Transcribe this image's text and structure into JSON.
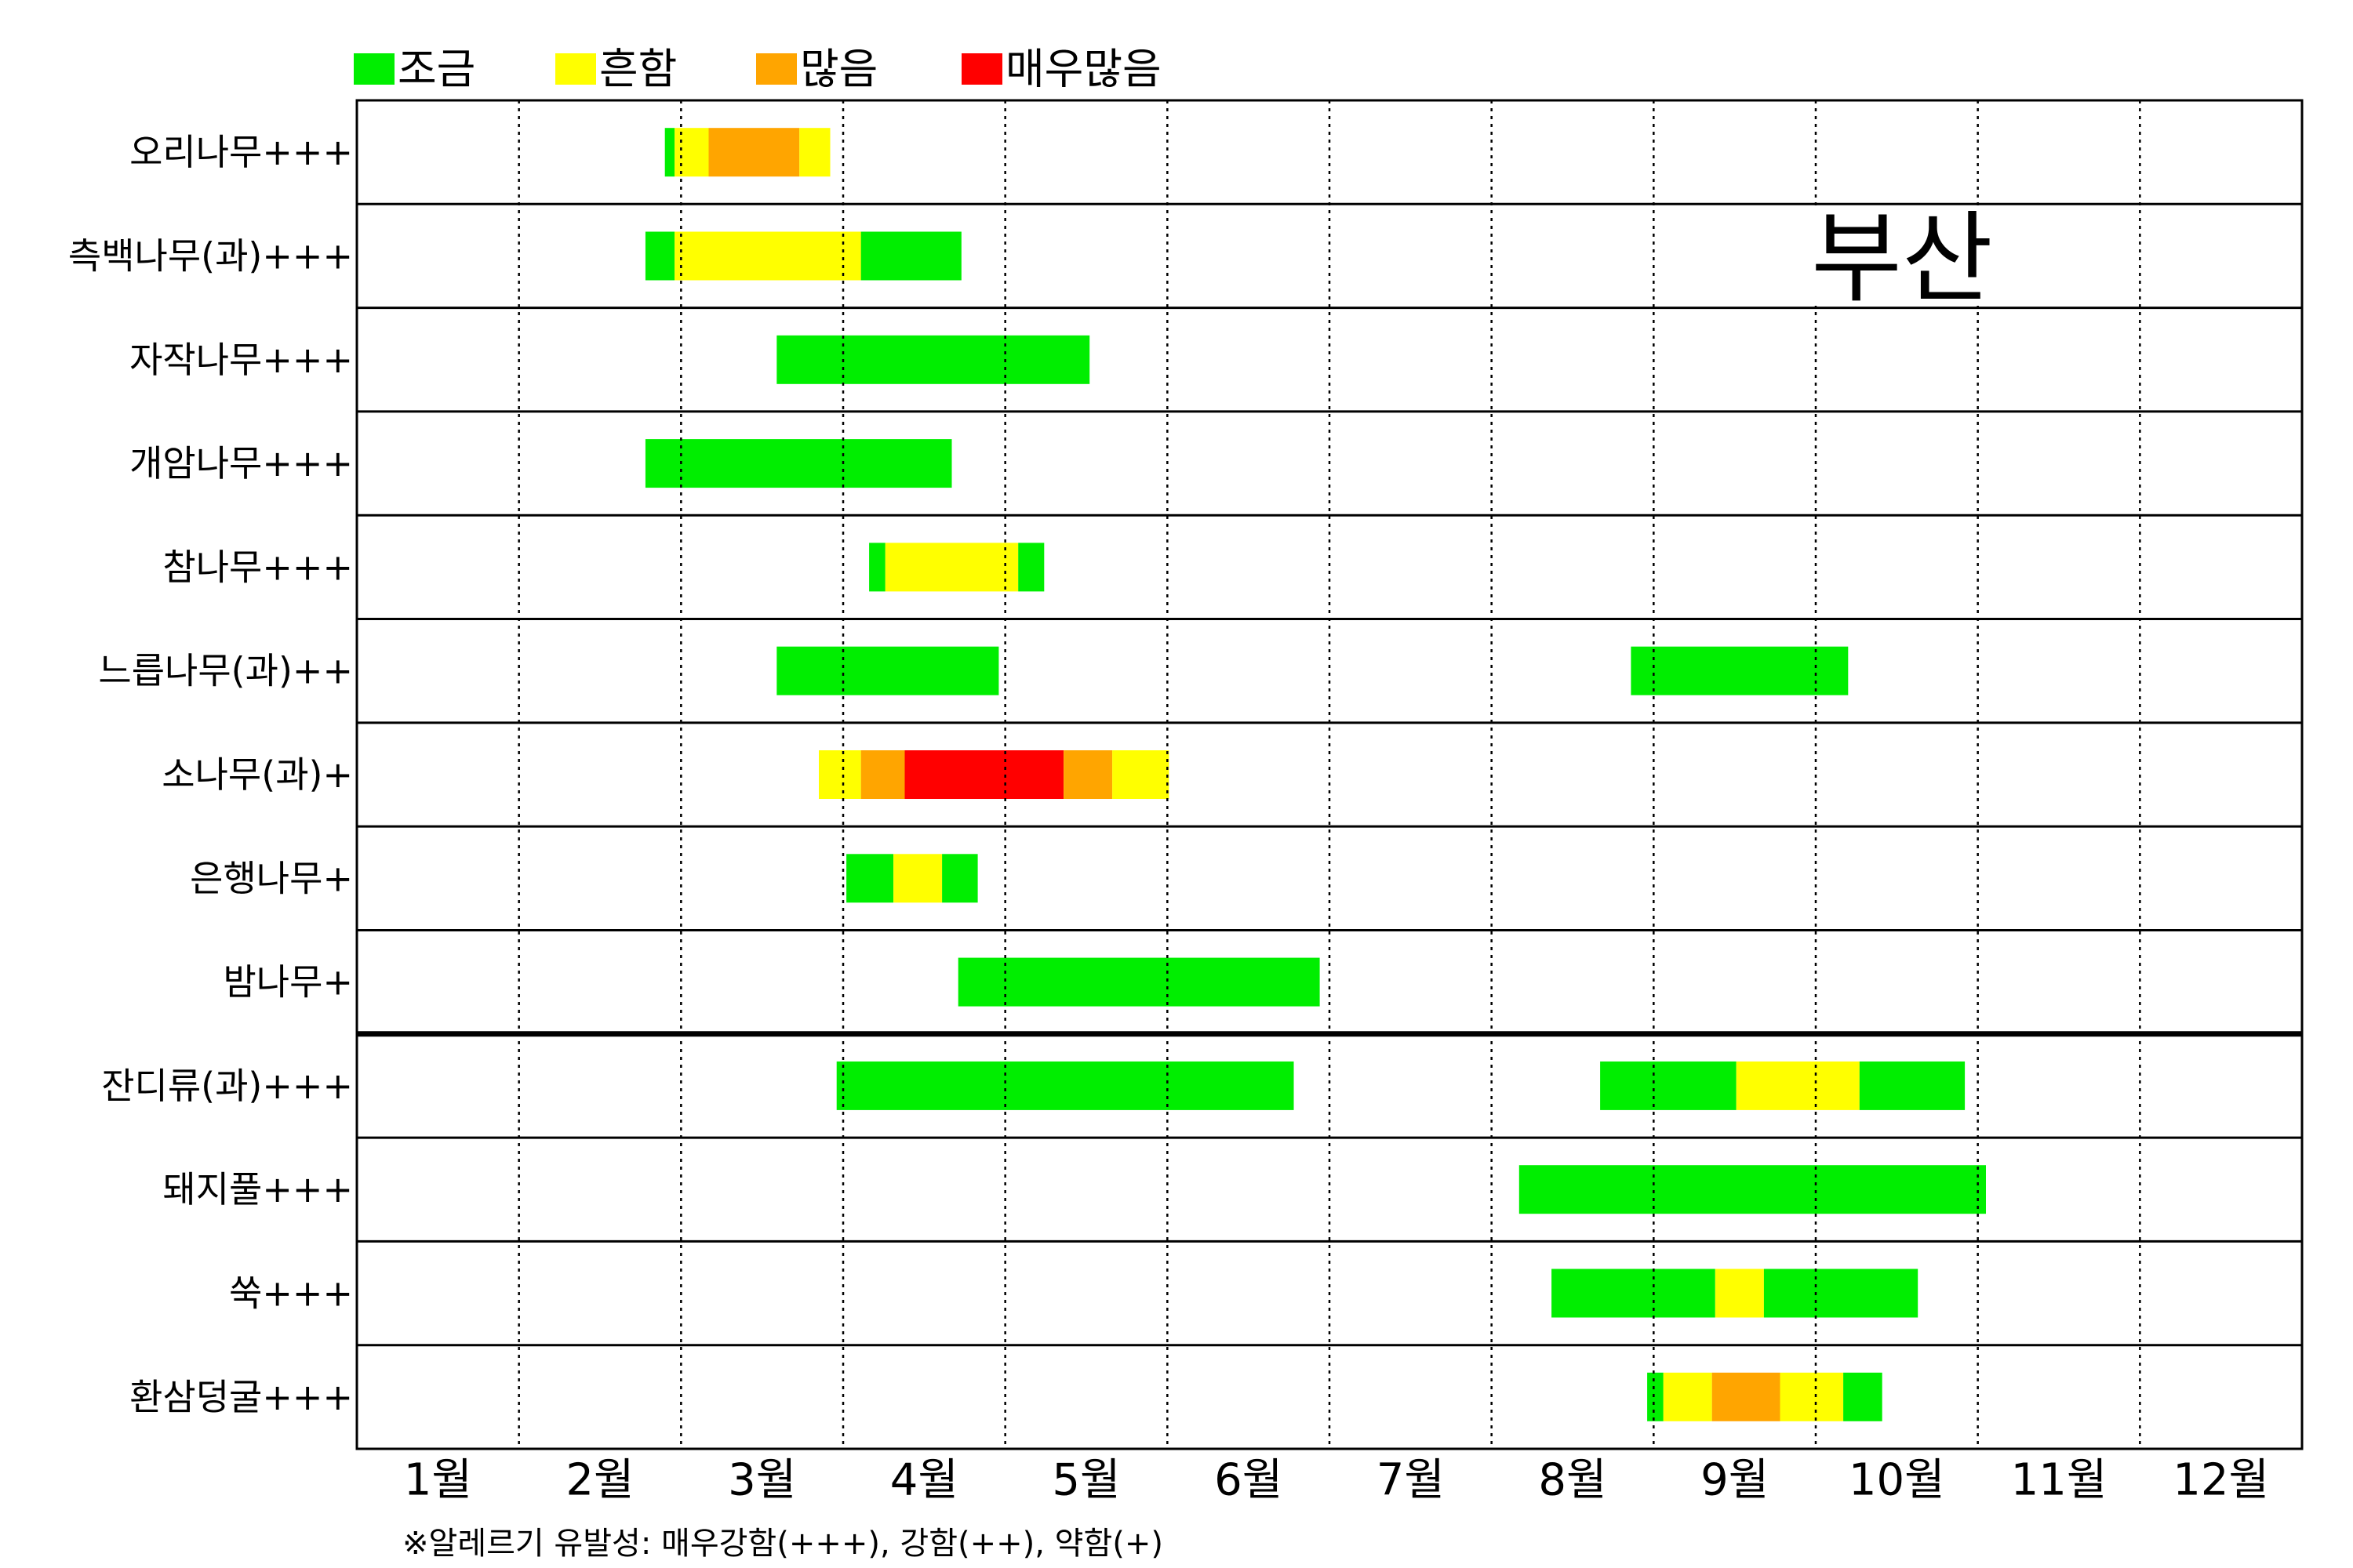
{
  "chart_data": {
    "type": "timeline",
    "title": "부산",
    "legend": {
      "placement": "top-left",
      "items": [
        {
          "label": "조금",
          "color": "#00ee00",
          "level": "low"
        },
        {
          "label": "흔함",
          "color": "#ffff00",
          "level": "common"
        },
        {
          "label": "많음",
          "color": "#ffa500",
          "level": "high"
        },
        {
          "label": "매우많음",
          "color": "#ff0000",
          "level": "very_high"
        }
      ]
    },
    "months": [
      "1월",
      "2월",
      "3월",
      "4월",
      "5월",
      "6월",
      "7월",
      "8월",
      "9월",
      "10월",
      "11월",
      "12월"
    ],
    "x_unit": "month (1.0 = start of January, 13.0 = end of December)",
    "xlim": [
      1,
      13
    ],
    "grid": "dotted vertical lines at month boundaries",
    "footnote": "※알레르기 유발성: 매우강함(+++), 강함(++), 약함(+)",
    "divider_after_row": 9,
    "rows": [
      {
        "label": "오리나무+++",
        "segments": [
          {
            "start": 2.9,
            "end": 2.96,
            "level": "low"
          },
          {
            "start": 2.96,
            "end": 3.17,
            "level": "common"
          },
          {
            "start": 3.17,
            "end": 3.73,
            "level": "high"
          },
          {
            "start": 3.73,
            "end": 3.92,
            "level": "common"
          }
        ]
      },
      {
        "label": "측백나무(과)+++",
        "segments": [
          {
            "start": 2.78,
            "end": 2.96,
            "level": "low"
          },
          {
            "start": 2.96,
            "end": 4.11,
            "level": "common"
          },
          {
            "start": 4.11,
            "end": 4.73,
            "level": "low"
          }
        ]
      },
      {
        "label": "자작나무+++",
        "segments": [
          {
            "start": 3.59,
            "end": 5.52,
            "level": "low"
          }
        ]
      },
      {
        "label": "개암나무+++",
        "segments": [
          {
            "start": 2.78,
            "end": 4.67,
            "level": "low"
          }
        ]
      },
      {
        "label": "참나무+++",
        "segments": [
          {
            "start": 4.16,
            "end": 4.26,
            "level": "low"
          },
          {
            "start": 4.26,
            "end": 5.08,
            "level": "common"
          },
          {
            "start": 5.08,
            "end": 5.24,
            "level": "low"
          }
        ]
      },
      {
        "label": "느릅나무(과)++",
        "segments": [
          {
            "start": 3.59,
            "end": 4.96,
            "level": "low"
          },
          {
            "start": 8.86,
            "end": 10.2,
            "level": "low"
          }
        ]
      },
      {
        "label": "소나무(과)+",
        "segments": [
          {
            "start": 3.85,
            "end": 4.11,
            "level": "common"
          },
          {
            "start": 4.11,
            "end": 4.38,
            "level": "high"
          },
          {
            "start": 4.38,
            "end": 5.36,
            "level": "very_high"
          },
          {
            "start": 5.36,
            "end": 5.66,
            "level": "high"
          },
          {
            "start": 5.66,
            "end": 6.01,
            "level": "common"
          }
        ]
      },
      {
        "label": "은행나무+",
        "segments": [
          {
            "start": 4.02,
            "end": 4.31,
            "level": "low"
          },
          {
            "start": 4.31,
            "end": 4.61,
            "level": "common"
          },
          {
            "start": 4.61,
            "end": 4.83,
            "level": "low"
          }
        ]
      },
      {
        "label": "밤나무+",
        "segments": [
          {
            "start": 4.71,
            "end": 6.94,
            "level": "low"
          }
        ]
      },
      {
        "label": "잔디류(과)+++",
        "segments": [
          {
            "start": 3.96,
            "end": 6.78,
            "level": "low"
          },
          {
            "start": 8.67,
            "end": 9.51,
            "level": "low"
          },
          {
            "start": 9.51,
            "end": 10.27,
            "level": "common"
          },
          {
            "start": 10.27,
            "end": 10.92,
            "level": "low"
          }
        ]
      },
      {
        "label": "돼지풀+++",
        "segments": [
          {
            "start": 8.17,
            "end": 11.05,
            "level": "low"
          }
        ]
      },
      {
        "label": "쑥+++",
        "segments": [
          {
            "start": 8.37,
            "end": 9.38,
            "level": "low"
          },
          {
            "start": 9.38,
            "end": 9.68,
            "level": "common"
          },
          {
            "start": 9.68,
            "end": 10.63,
            "level": "low"
          }
        ]
      },
      {
        "label": "환삼덩굴+++",
        "segments": [
          {
            "start": 8.96,
            "end": 9.06,
            "level": "low"
          },
          {
            "start": 9.06,
            "end": 9.36,
            "level": "common"
          },
          {
            "start": 9.36,
            "end": 9.78,
            "level": "high"
          },
          {
            "start": 9.78,
            "end": 10.17,
            "level": "common"
          },
          {
            "start": 10.17,
            "end": 10.41,
            "level": "low"
          }
        ]
      }
    ]
  }
}
